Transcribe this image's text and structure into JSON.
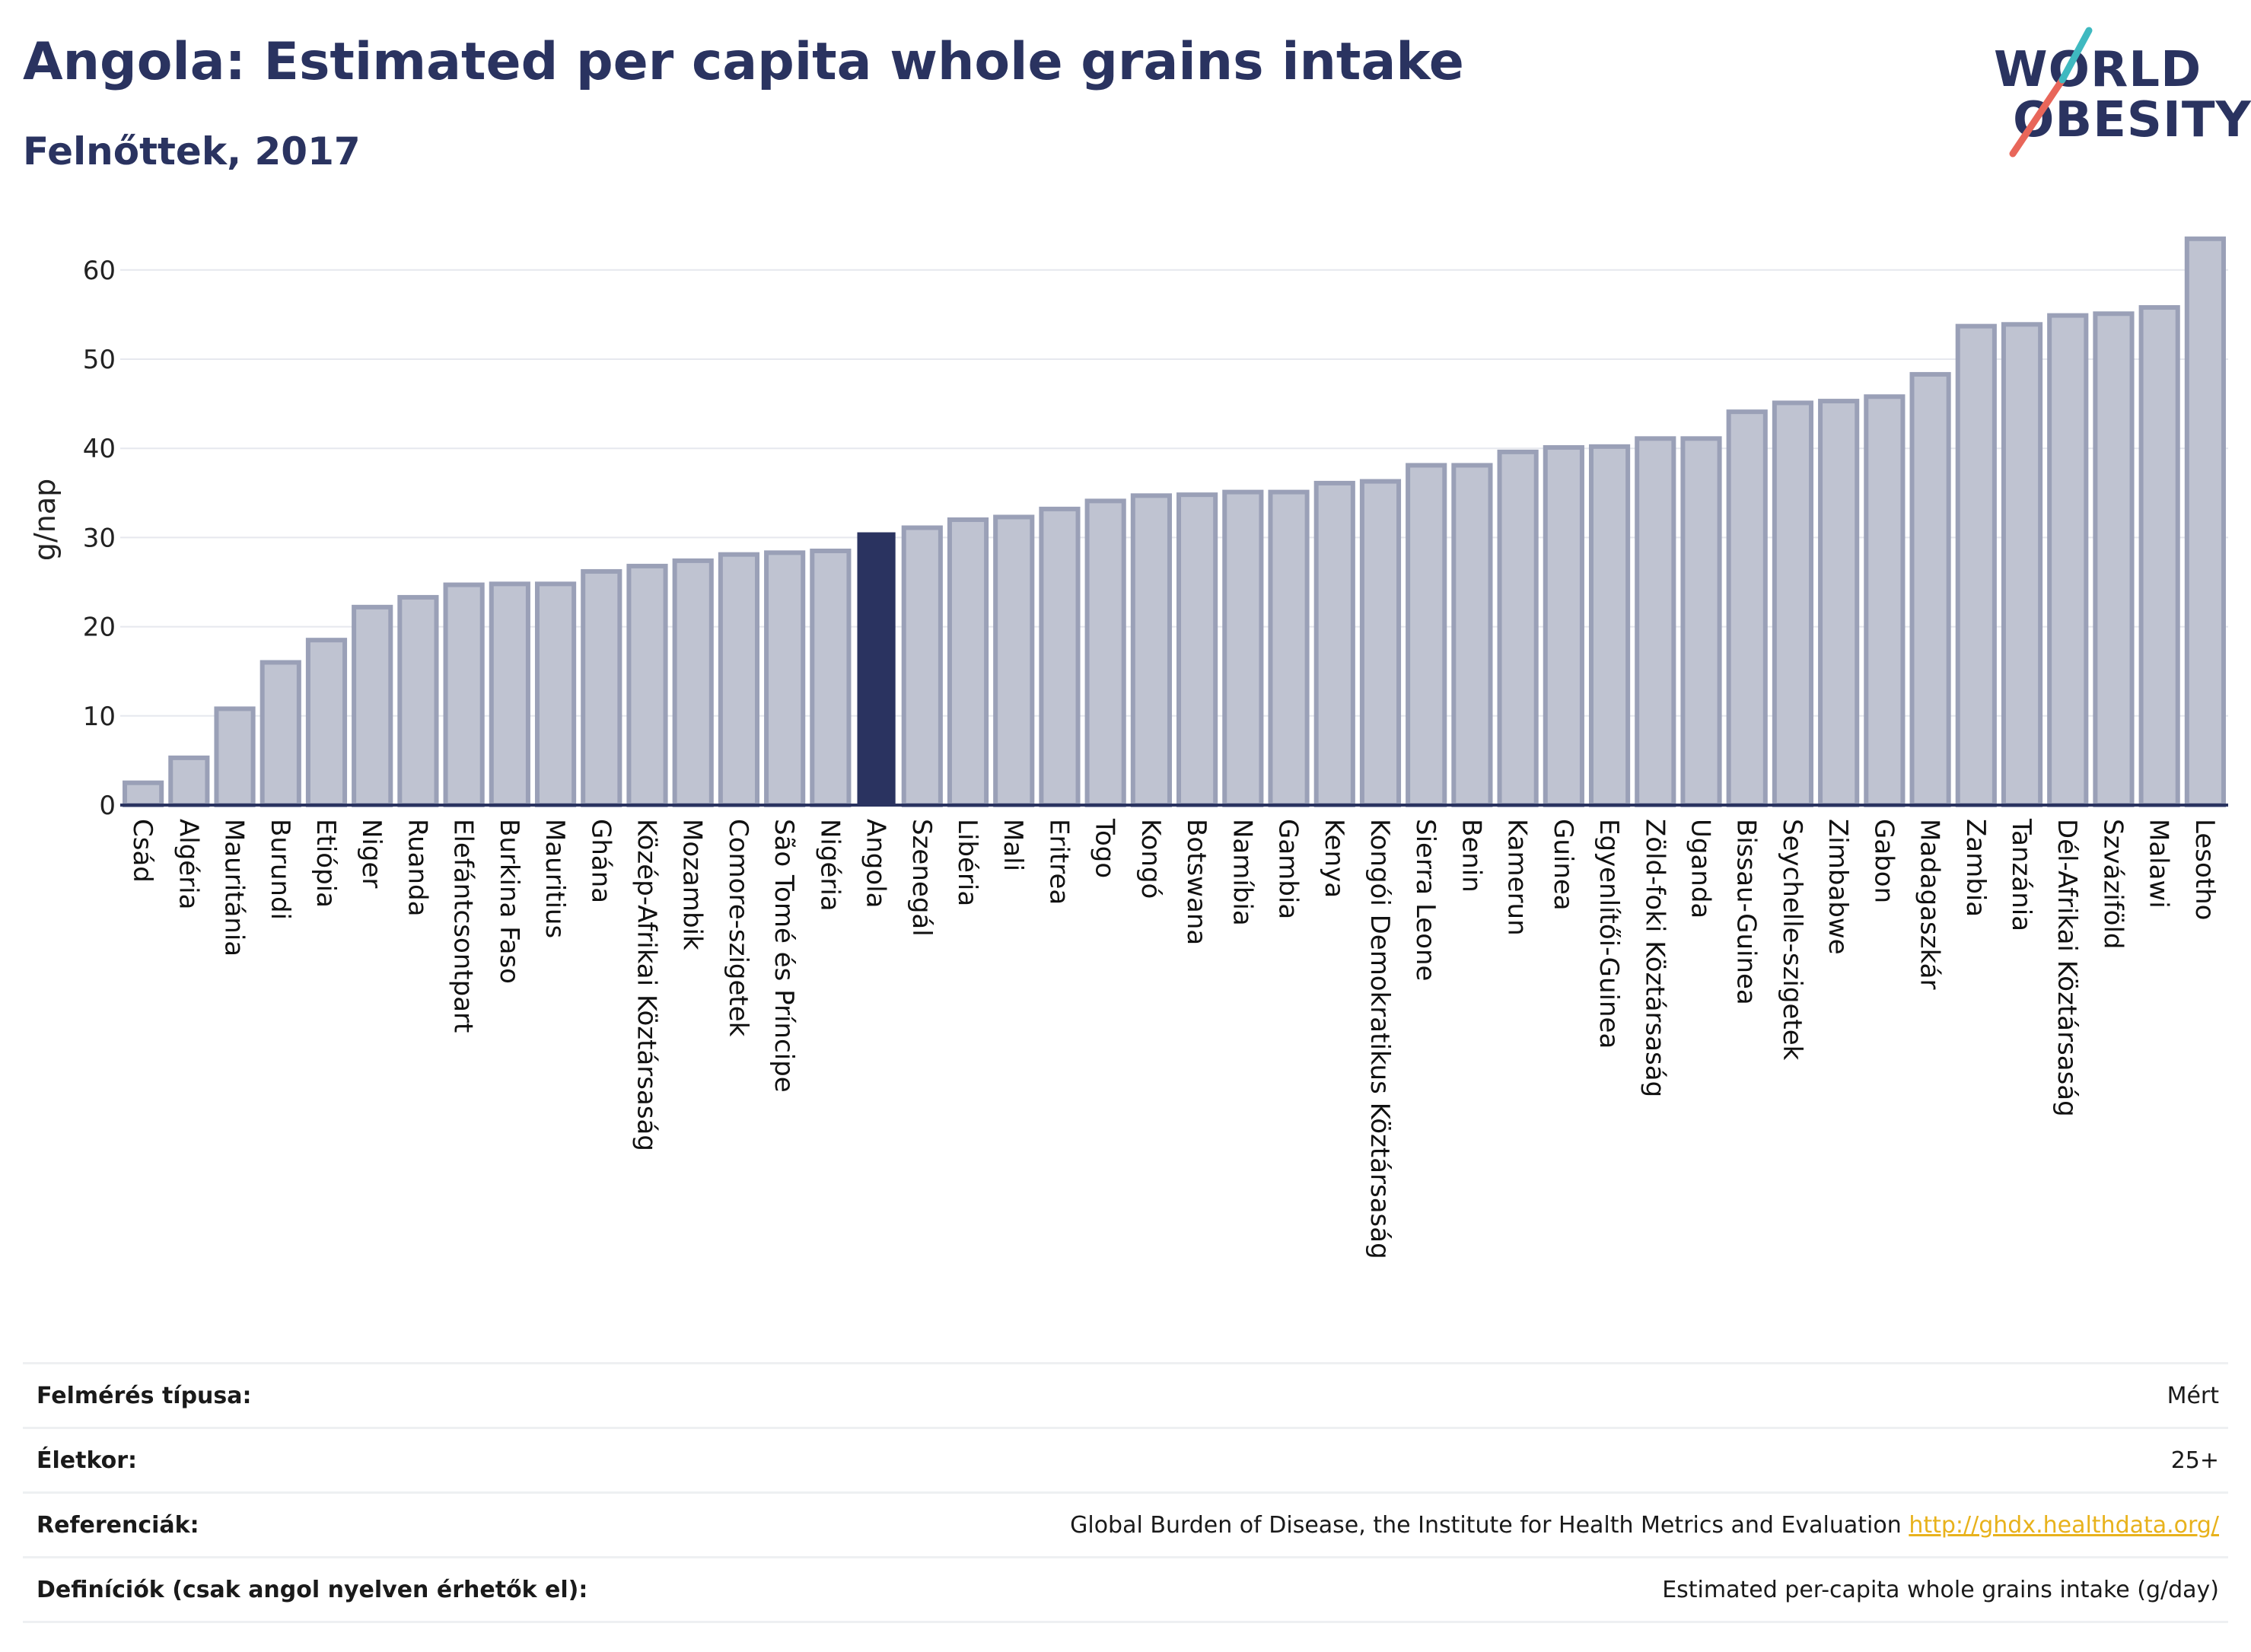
{
  "header": {
    "title": "Angola: Estimated per capita whole grains intake",
    "subtitle": "Felnőttek, 2017"
  },
  "logo": {
    "line1": "WORLD",
    "line2": "OBESITY",
    "colors": {
      "text": "#2a3360",
      "slash_red": "#e8665a",
      "slash_teal": "#3fb9c0"
    }
  },
  "colors": {
    "bar_fill": "#bfc3d1",
    "bar_stroke": "#9aa0b7",
    "highlight": "#2a3360",
    "grid": "#e6e8ee",
    "link": "#e8b21c"
  },
  "chart_data": {
    "type": "bar",
    "ylabel": "g/nap",
    "ylim": [
      0,
      65
    ],
    "yticks": [
      0,
      10,
      20,
      30,
      40,
      50,
      60
    ],
    "grid": true,
    "highlight": "Angola",
    "categories": [
      "Csád",
      "Algéria",
      "Mauritánia",
      "Burundi",
      "Etiópia",
      "Niger",
      "Ruanda",
      "Elefántcsontpart",
      "Burkina Faso",
      "Mauritius",
      "Ghána",
      "Közép-Afrikai Köztársaság",
      "Mozambik",
      "Comore-szigetek",
      "São Tomé és Príncipe",
      "Nigéria",
      "Angola",
      "Szenegál",
      "Libéria",
      "Mali",
      "Eritrea",
      "Togo",
      "Kongó",
      "Botswana",
      "Namíbia",
      "Gambia",
      "Kenya",
      "Kongói Demokratikus Köztársaság",
      "Sierra Leone",
      "Benin",
      "Kamerun",
      "Guinea",
      "Egyenlítői-Guinea",
      "Zöld-foki Köztársaság",
      "Uganda",
      "Bissau-Guinea",
      "Seychelle-szigetek",
      "Zimbabwe",
      "Gabon",
      "Madagaszkár",
      "Zambia",
      "Tanzánia",
      "Dél-Afrikai Köztársaság",
      "Szváziföld",
      "Malawi",
      "Lesotho"
    ],
    "values": [
      2.5,
      5.3,
      10.8,
      16.0,
      18.5,
      22.2,
      23.3,
      24.7,
      24.8,
      24.8,
      26.2,
      26.8,
      27.4,
      28.1,
      28.3,
      28.5,
      30.5,
      31.1,
      32.0,
      32.3,
      33.2,
      34.1,
      34.7,
      34.8,
      35.1,
      35.1,
      36.1,
      36.3,
      38.1,
      38.1,
      39.6,
      40.1,
      40.2,
      41.1,
      41.1,
      44.1,
      45.1,
      45.3,
      45.8,
      48.3,
      53.7,
      53.9,
      54.9,
      55.1,
      55.8,
      63.5
    ]
  },
  "info": {
    "rows": [
      {
        "label": "Felmérés típusa:",
        "value": "Mért"
      },
      {
        "label": "Életkor:",
        "value": "25+"
      },
      {
        "label": "Referenciák:",
        "value": "Global Burden of Disease, the Institute for Health Metrics and Evaluation",
        "link": "http://ghdx.healthdata.org/"
      },
      {
        "label": "Definíciók (csak angol nyelven érhetők el):",
        "value": "Estimated per-capita whole grains intake (g/day)"
      }
    ]
  }
}
